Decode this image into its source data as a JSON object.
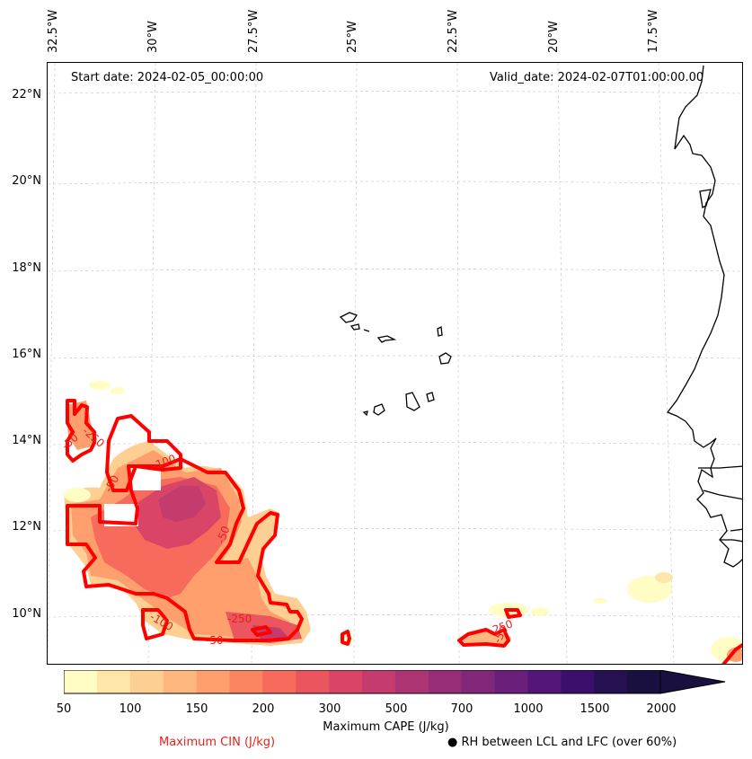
{
  "map": {
    "start_date": "Start date: 2024-02-05_00:00:00",
    "valid_date": "Valid_date: 2024-02-07T01:00:00.00",
    "lon_labels": [
      "32.5°W",
      "30°W",
      "27.5°W",
      "25°W",
      "22.5°W",
      "20°W",
      "17.5°W"
    ],
    "lat_labels": [
      "22°N",
      "20°N",
      "18°N",
      "16°N",
      "14°N",
      "12°N",
      "10°N"
    ],
    "cin_contour_labels": [
      "-50",
      "-100",
      "-250",
      "-50",
      "-50",
      "-100",
      "-250",
      "-50",
      "-250",
      "-50"
    ],
    "colors": {
      "cin_line": "#ff0000",
      "coastline": "#000000",
      "grid": "#cccccc"
    }
  },
  "colorbar": {
    "tick_labels": [
      "50",
      "100",
      "150",
      "200",
      "300",
      "500",
      "700",
      "1000",
      "1500",
      "2000"
    ],
    "title": "Maximum CAPE (J/kg)",
    "extend": "max",
    "colors": [
      "#fffdc3",
      "#fee6a8",
      "#fecf92",
      "#feb77e",
      "#fe9f6d",
      "#fb8461",
      "#f66b5c",
      "#ea555e",
      "#d84566",
      "#c33c6d",
      "#ad3473",
      "#972c77",
      "#802779",
      "#6a1f7a",
      "#541778",
      "#3d0f6d",
      "#251152",
      "#1a103f"
    ]
  },
  "legend": {
    "cin": "Maximum CIN (J/kg)",
    "rh": "● RH between LCL and LFC (over 60%)"
  }
}
